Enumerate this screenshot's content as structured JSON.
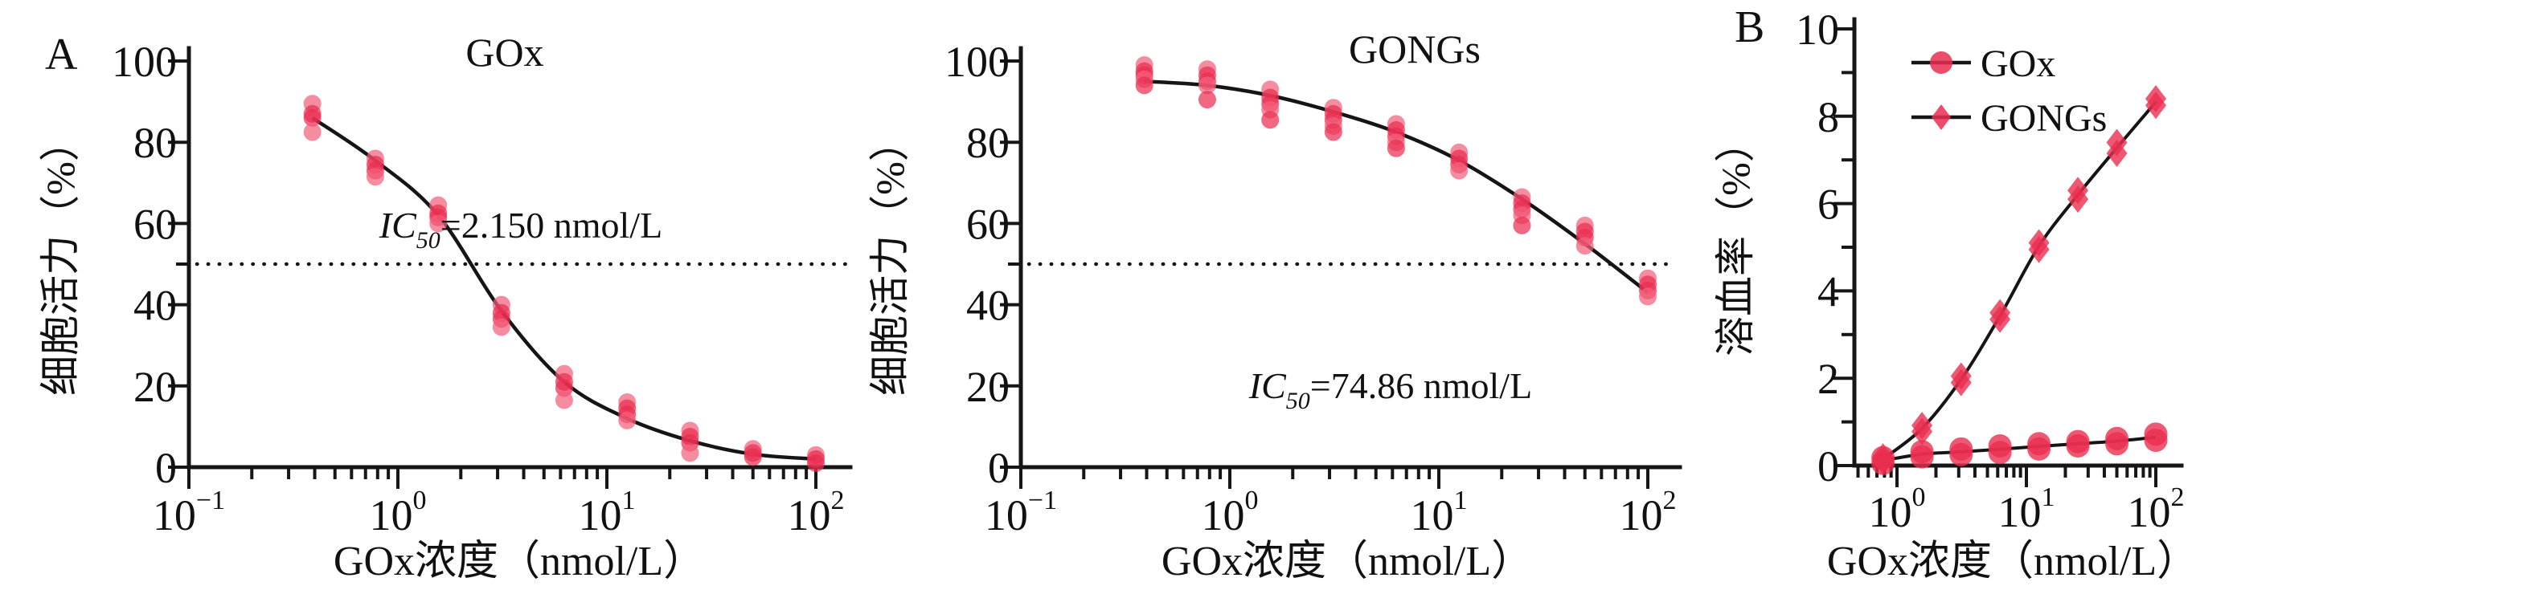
{
  "panel_labels": {
    "a": "A",
    "b": "B"
  },
  "colors": {
    "marker": "#ea2e50",
    "marker_light": "#f2607b",
    "curve": "#151515",
    "axis": "#161616",
    "text": "#111111",
    "background": "#ffffff"
  },
  "chart_data": [
    {
      "id": "viability-gox",
      "type": "scatter",
      "panel": "A",
      "title": "GOx",
      "xlabel": "GOx浓度（nmol/L）",
      "ylabel": "细胞活力（%）",
      "x_scale": "log10",
      "x_tick_exponents": [
        -1,
        0,
        1,
        2
      ],
      "ylim": [
        0,
        100
      ],
      "y_ticks": [
        0,
        20,
        40,
        60,
        80,
        100
      ],
      "y_minor_ticks": [
        50
      ],
      "reference_line_y": 50,
      "annotation": {
        "italic": "IC",
        "subscript": "50",
        "rest": "=2.150 nmol/L"
      },
      "x_nmol_L": [
        0.39,
        0.78,
        1.56,
        3.13,
        6.25,
        12.5,
        25,
        50,
        100
      ],
      "replicates": [
        [
          89.5,
          87,
          86,
          82.5
        ],
        [
          76,
          74.5,
          73,
          71.5
        ],
        [
          64.5,
          62.5,
          61.5,
          60
        ],
        [
          40,
          38,
          36.5,
          34.5
        ],
        [
          23,
          21,
          19.5,
          16.5
        ],
        [
          16,
          14.5,
          13,
          11.5
        ],
        [
          9,
          7.5,
          6,
          3.5
        ],
        [
          4.5,
          3.5,
          2.5
        ],
        [
          3,
          2,
          1
        ]
      ],
      "fit_curve": [
        [
          0.39,
          86
        ],
        [
          0.78,
          75.5
        ],
        [
          1.56,
          62
        ],
        [
          3.13,
          38.5
        ],
        [
          6.25,
          21
        ],
        [
          12.5,
          12
        ],
        [
          25,
          6.5
        ],
        [
          50,
          3.2
        ],
        [
          100,
          2
        ]
      ]
    },
    {
      "id": "viability-gongs",
      "type": "scatter",
      "panel": "A",
      "title": "GONGs",
      "xlabel": "GOx浓度（nmol/L）",
      "ylabel": "细胞活力（%）",
      "x_scale": "log10",
      "x_tick_exponents": [
        -1,
        0,
        1,
        2
      ],
      "ylim": [
        0,
        100
      ],
      "y_ticks": [
        0,
        20,
        40,
        60,
        80,
        100
      ],
      "y_minor_ticks": [
        50
      ],
      "reference_line_y": 50,
      "annotation": {
        "italic": "IC",
        "subscript": "50",
        "rest": "=74.86 nmol/L"
      },
      "x_nmol_L": [
        0.39,
        0.78,
        1.56,
        3.13,
        6.25,
        12.5,
        25,
        50,
        100
      ],
      "replicates": [
        [
          99,
          97.5,
          96.5,
          95.5,
          94
        ],
        [
          98,
          96.5,
          95,
          94,
          90.5
        ],
        [
          93,
          91,
          89.5,
          88,
          85.5
        ],
        [
          88.5,
          87,
          85.5,
          84,
          82.5
        ],
        [
          84.5,
          83,
          81.5,
          80,
          78.5
        ],
        [
          77.5,
          76,
          74.5,
          73
        ],
        [
          66.5,
          65,
          63.5,
          62,
          59.5
        ],
        [
          59.5,
          58,
          56.5,
          54.5
        ],
        [
          46.5,
          45,
          43.5,
          42
        ]
      ],
      "fit_curve": [
        [
          0.39,
          95
        ],
        [
          0.78,
          94
        ],
        [
          1.56,
          91.5
        ],
        [
          3.13,
          87.5
        ],
        [
          6.25,
          82.5
        ],
        [
          12.5,
          75.5
        ],
        [
          25,
          66
        ],
        [
          50,
          55
        ],
        [
          100,
          43
        ]
      ]
    },
    {
      "id": "hemolysis",
      "type": "scatter-line",
      "panel": "B",
      "title": "",
      "xlabel": "GOx浓度（nmol/L）",
      "ylabel": "溶血率（%）",
      "x_scale": "log10",
      "x_tick_exponents": [
        0,
        1,
        2
      ],
      "ylim": [
        0,
        10
      ],
      "y_ticks": [
        0,
        2,
        4,
        6,
        8,
        10
      ],
      "y_minor_ticks": [
        1,
        3,
        5,
        7,
        9
      ],
      "legend": {
        "position": "top-left",
        "entries": [
          {
            "label": "GOx",
            "marker": "circle"
          },
          {
            "label": "GONGs",
            "marker": "diamond"
          }
        ]
      },
      "x_nmol_L": [
        0.78,
        1.56,
        3.13,
        6.25,
        12.5,
        25,
        50,
        100
      ],
      "series": [
        {
          "name": "GOx",
          "marker": "circle",
          "replicates": [
            [
              0.05,
              0.18
            ],
            [
              0.2,
              0.32
            ],
            [
              0.25,
              0.38
            ],
            [
              0.3,
              0.45
            ],
            [
              0.38,
              0.5
            ],
            [
              0.45,
              0.55
            ],
            [
              0.5,
              0.62
            ],
            [
              0.58,
              0.72
            ]
          ]
        },
        {
          "name": "GONGs",
          "marker": "diamond",
          "replicates": [
            [
              0.1,
              0.2
            ],
            [
              0.78,
              0.92
            ],
            [
              1.9,
              2.05
            ],
            [
              3.35,
              3.5
            ],
            [
              4.95,
              5.1
            ],
            [
              6.1,
              6.3
            ],
            [
              7.15,
              7.4
            ],
            [
              8.25,
              8.4
            ]
          ]
        }
      ]
    }
  ]
}
